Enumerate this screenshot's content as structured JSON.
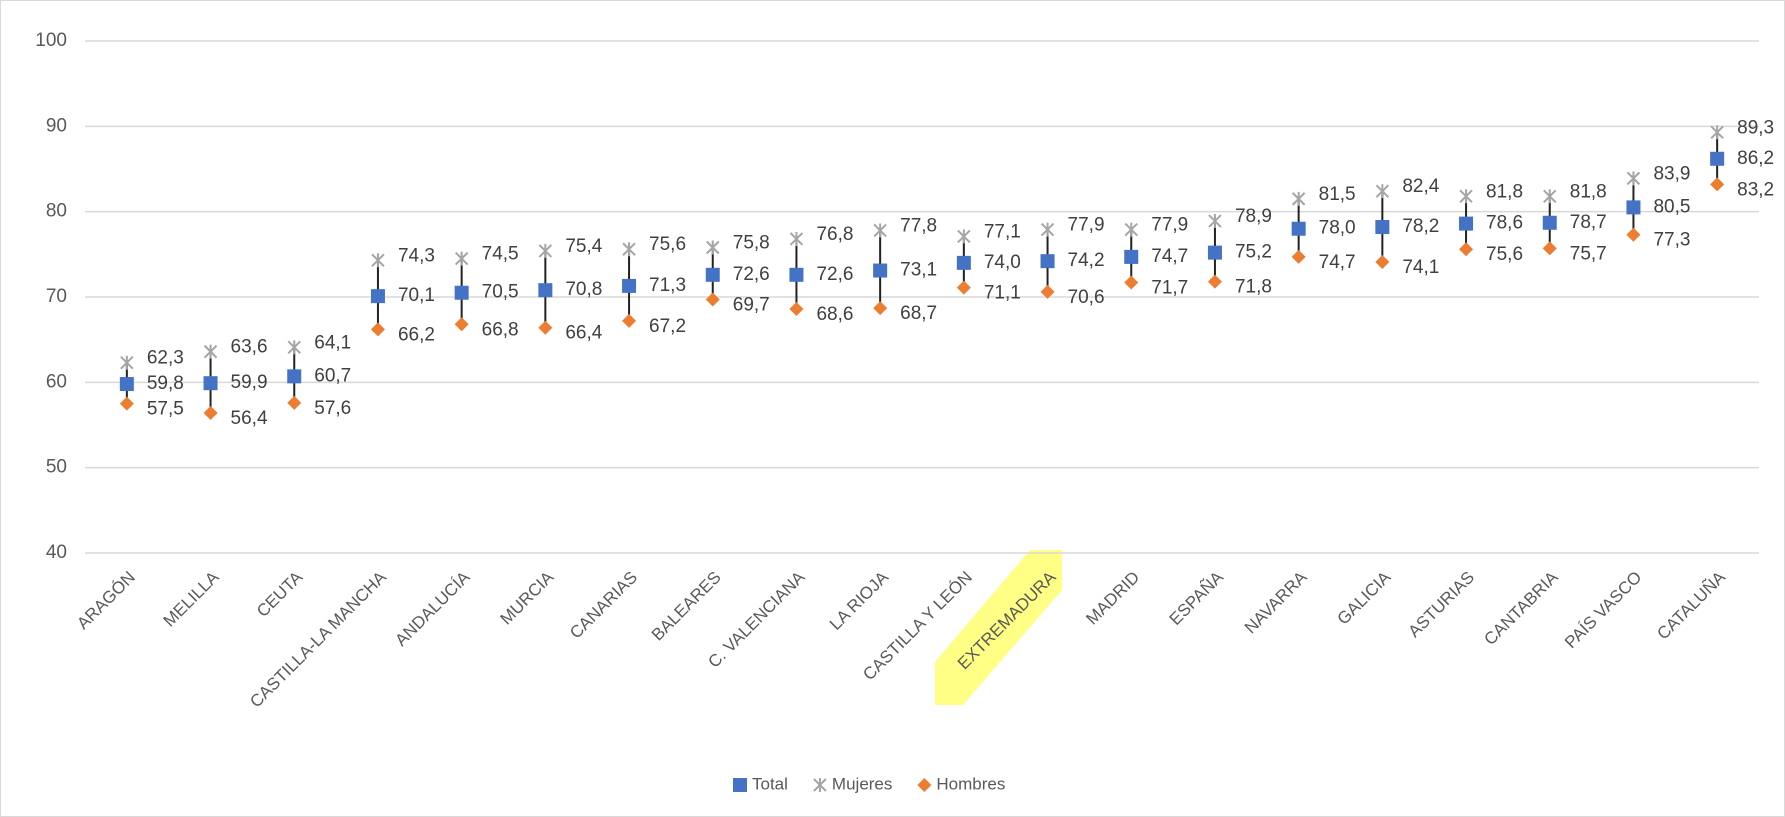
{
  "chart_data": {
    "type": "dot",
    "categories": [
      "ARAGÓN",
      "MELILLA",
      "CEUTA",
      "CASTILLA-LA MANCHA",
      "ANDALUCÍA",
      "MURCIA",
      "CANARIAS",
      "BALEARES",
      "C. VALENCIANA",
      "LA RIOJA",
      "CASTILLA Y LEÓN",
      "EXTREMADURA",
      "MADRID",
      "ESPAÑA",
      "NAVARRA",
      "GALICIA",
      "ASTURIAS",
      "CANTABRIA",
      "PAÍS VASCO",
      "CATALUÑA"
    ],
    "series": [
      {
        "name": "Total",
        "color": "#4472c4",
        "marker": "square",
        "values": [
          59.8,
          59.9,
          60.7,
          70.1,
          70.5,
          70.8,
          71.3,
          72.6,
          72.6,
          73.1,
          74.0,
          74.2,
          74.7,
          75.2,
          78.0,
          78.2,
          78.6,
          78.7,
          80.5,
          86.2
        ],
        "value_labels": [
          "59,8",
          "59,9",
          "60,7",
          "70,1",
          "70,5",
          "70,8",
          "71,3",
          "72,6",
          "72,6",
          "73,1",
          "74,0",
          "74,2",
          "74,7",
          "75,2",
          "78,0",
          "78,2",
          "78,6",
          "78,7",
          "80,5",
          "86,2"
        ]
      },
      {
        "name": "Mujeres",
        "color": "#a5a5a5",
        "marker": "star",
        "values": [
          62.3,
          63.6,
          64.1,
          74.3,
          74.5,
          75.4,
          75.6,
          75.8,
          76.8,
          77.8,
          77.1,
          77.9,
          77.9,
          78.9,
          81.5,
          82.4,
          81.8,
          81.8,
          83.9,
          89.3
        ],
        "value_labels": [
          "62,3",
          "63,6",
          "64,1",
          "74,3",
          "74,5",
          "75,4",
          "75,6",
          "75,8",
          "76,8",
          "77,8",
          "77,1",
          "77,9",
          "77,9",
          "78,9",
          "81,5",
          "82,4",
          "81,8",
          "81,8",
          "83,9",
          "89,3"
        ]
      },
      {
        "name": "Hombres",
        "color": "#ed7d31",
        "marker": "diamond",
        "values": [
          57.5,
          56.4,
          57.6,
          66.2,
          66.8,
          66.4,
          67.2,
          69.7,
          68.6,
          68.7,
          71.1,
          70.6,
          71.7,
          71.8,
          74.7,
          74.1,
          75.6,
          75.7,
          77.3,
          83.2
        ],
        "value_labels": [
          "57,5",
          "56,4",
          "57,6",
          "66,2",
          "66,8",
          "66,4",
          "67,2",
          "69,7",
          "68,6",
          "68,7",
          "71,1",
          "70,6",
          "71,7",
          "71,8",
          "74,7",
          "74,1",
          "75,6",
          "75,7",
          "77,3",
          "83,2"
        ]
      }
    ],
    "ylim": [
      40,
      100
    ],
    "yticks": [
      40,
      50,
      60,
      70,
      80,
      90,
      100
    ],
    "grid": true,
    "legend": "bottom"
  }
}
